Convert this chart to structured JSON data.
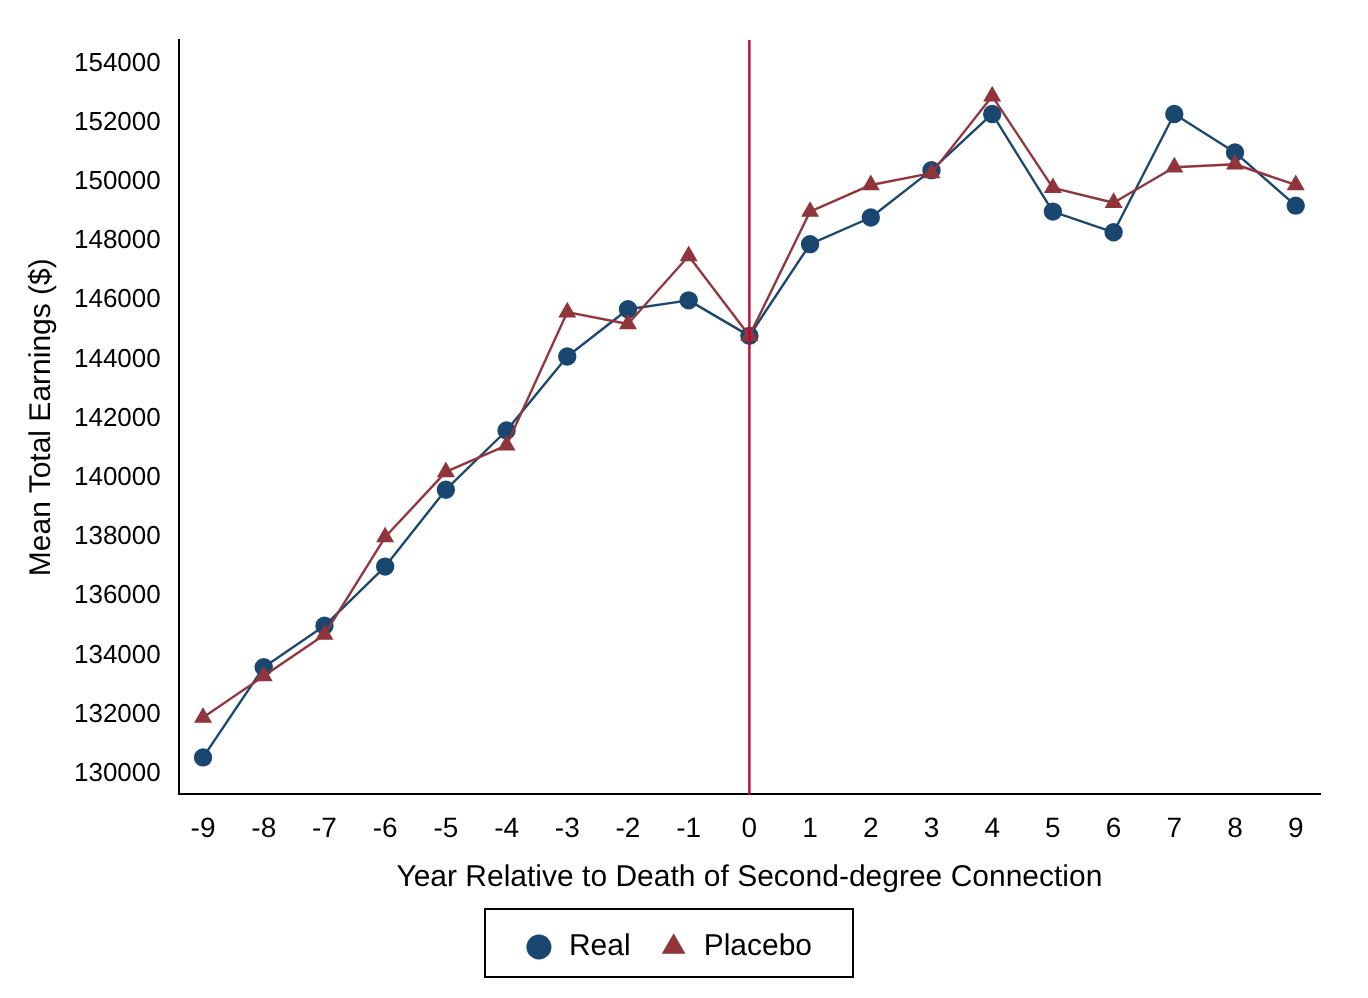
{
  "chart_data": {
    "type": "line",
    "xlabel": "Year Relative to Death of Second-degree Connection",
    "ylabel": "Mean Total Earnings ($)",
    "x": [
      -9,
      -8,
      -7,
      -6,
      -5,
      -4,
      -3,
      -2,
      -1,
      0,
      1,
      2,
      3,
      4,
      5,
      6,
      7,
      8,
      9
    ],
    "series": [
      {
        "name": "Real",
        "color": "#1a476f",
        "marker": "circle",
        "values": [
          130550,
          133600,
          135000,
          137000,
          139600,
          141600,
          144100,
          145700,
          146000,
          144800,
          147900,
          148800,
          150400,
          152300,
          149000,
          148300,
          152300,
          151000,
          149200
        ]
      },
      {
        "name": "Placebo",
        "color": "#90353b",
        "marker": "triangle",
        "values": [
          131900,
          133300,
          134700,
          138000,
          140200,
          141100,
          145600,
          145200,
          147500,
          144800,
          149000,
          149900,
          150300,
          152900,
          149800,
          149300,
          150500,
          150600,
          149900
        ]
      }
    ],
    "xlim": [
      -9.4,
      9.4
    ],
    "xticks": [
      -9,
      -8,
      -7,
      -6,
      -5,
      -4,
      -3,
      -2,
      -1,
      0,
      1,
      2,
      3,
      4,
      5,
      6,
      7,
      8,
      9
    ],
    "ylim": [
      129300,
      154800
    ],
    "yticks": [
      130000,
      132000,
      134000,
      136000,
      138000,
      140000,
      142000,
      144000,
      146000,
      148000,
      150000,
      152000,
      154000
    ],
    "ref_lines": [
      {
        "axis": "x",
        "value": 0,
        "color": "#c10534"
      }
    ],
    "grid": false,
    "legend": "bottom",
    "line_style": "solid"
  }
}
